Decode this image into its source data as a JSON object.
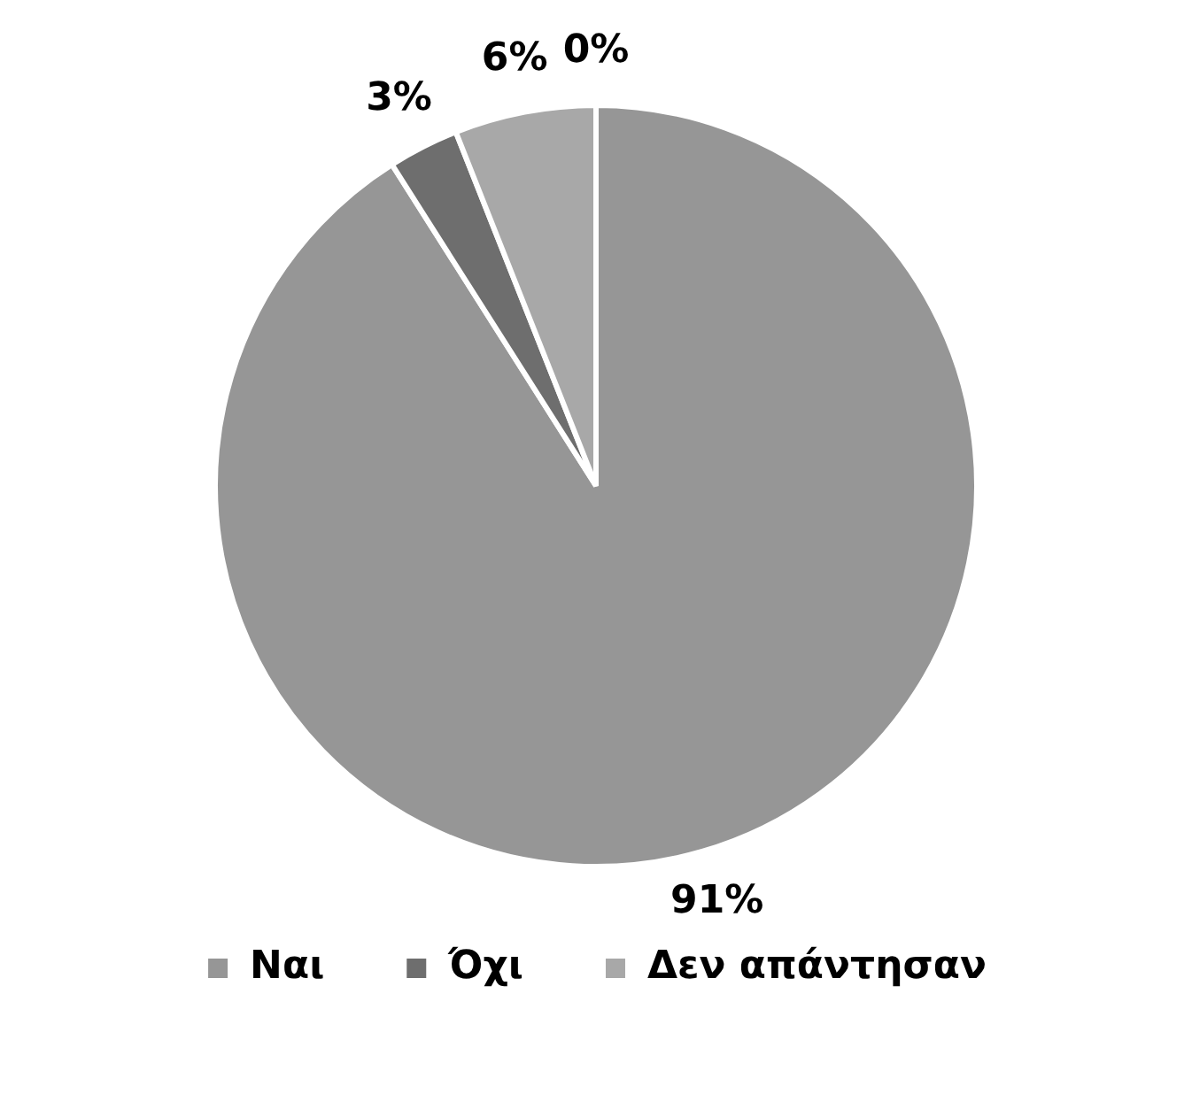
{
  "chart_data": {
    "type": "pie",
    "categories": [
      "Ναι",
      "Όχι",
      "Δεν απάντησαν",
      null
    ],
    "values": [
      91,
      3,
      6,
      0
    ],
    "colors": [
      "#969696",
      "#6e6e6e",
      "#a8a8a8",
      "#bdbdbd"
    ],
    "value_labels": [
      "91%",
      "3%",
      "6%",
      "0%"
    ],
    "legend": "bottom"
  }
}
